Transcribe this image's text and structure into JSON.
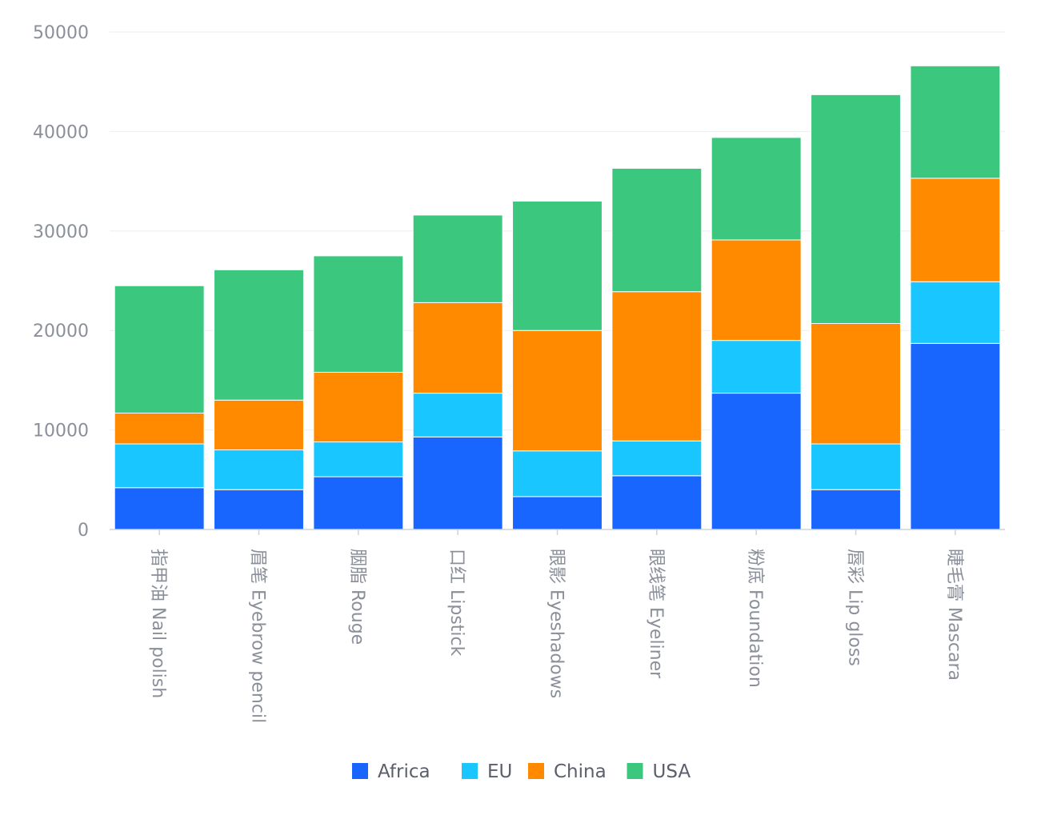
{
  "chart_data": {
    "type": "bar",
    "stacked": true,
    "categories": [
      "指甲油 Nail polish",
      "眉笔 Eyebrow pencil",
      "胭脂 Rouge",
      "口红 Lipstick",
      "眼影 Eyeshadows",
      "眼线笔 Eyeliner",
      "粉底 Foundation",
      "唇彩 Lip gloss",
      "睫毛膏 Mascara"
    ],
    "series": [
      {
        "name": "Africa",
        "color": "#1966ff",
        "values": [
          4200,
          4000,
          5300,
          9300,
          3300,
          5400,
          13700,
          4000,
          18700
        ]
      },
      {
        "name": "EU",
        "color": "#1ac6ff",
        "values": [
          4400,
          4000,
          3500,
          4400,
          4600,
          3500,
          5300,
          4600,
          6200
        ]
      },
      {
        "name": "China",
        "color": "#ff8a00",
        "values": [
          3100,
          5000,
          7000,
          9100,
          12100,
          15000,
          10100,
          12100,
          10400
        ]
      },
      {
        "name": "USA",
        "color": "#3cc77f",
        "values": [
          12800,
          13100,
          11700,
          8800,
          13000,
          12400,
          10300,
          23000,
          11300
        ]
      }
    ],
    "y_ticks": [
      "0",
      "10000",
      "20000",
      "30000",
      "40000",
      "50000"
    ],
    "ylim": [
      0,
      50000
    ],
    "grid": true,
    "legend_position": "bottom-center",
    "title": "",
    "xlabel": "",
    "ylabel": ""
  }
}
